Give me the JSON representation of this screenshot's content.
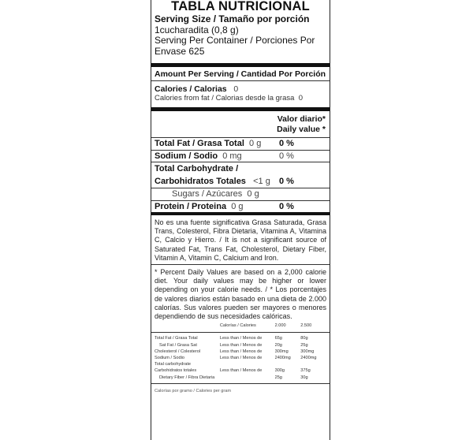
{
  "title": "TABLA NUTRICIONAL",
  "serving_size_label": "Serving Size / Tamaño por porción",
  "serving_size_value": "1cucharadita (0,8 g)",
  "servings_per_container": "Serving Per Container / Porciones Por Envase 625",
  "amount_per_serving": "Amount Per Serving / Cantidad Por Porción",
  "calories": {
    "label": "Calories / Calorias",
    "value": "0"
  },
  "calories_from_fat": {
    "label": "Calories from fat / Calorias desde la grasa",
    "value": "0"
  },
  "dv_header": [
    "Valor diario*",
    "Daily value *"
  ],
  "nutrients": [
    {
      "label": "Total Fat / Grasa Total",
      "amount": "0 g",
      "dv": "0 %"
    },
    {
      "label": "Sodium / Sodio",
      "amount": "0 mg",
      "dv": "0 %"
    },
    {
      "label": "Total Carbohydrate /",
      "label2": "Carbohidratos Totales",
      "amount": "<1 g",
      "dv": "0 %"
    },
    {
      "label": "Sugars / Azúcares",
      "amount": "0 g"
    },
    {
      "label": "Protein / Proteina",
      "amount": "0 g",
      "dv": "0 %"
    }
  ],
  "not_significant": "No es una fuente significativa Grasa Saturada, Grasa Trans, Colesterol, Fibra Dietaria, Vitamina A, Vitamina C, Calcio y Hierro. / It is not a significant source of Saturated Fat, Trans Fat, Cholesterol, Dietary Fiber, Vitamin A, Vitamin C, Calcium and Iron.",
  "percent_note": "* Percent Daily Values are based on a 2,000 calorie diet. Your daily values may be higher or lower depending on your calorie needs. / * Los porcentajes de valores diarios están basado en una dieta de 2.000 calorías. Sus valores pueden ser mayores o menores dependiendo de sus necesidades calóricas.",
  "calorie_header": {
    "label": "Calorías / Calories",
    "c1": "2.000",
    "c2": "2.500"
  },
  "reference_rows": [
    {
      "name": "Total Fat / Grasa Total",
      "limit": "Less than / Menos de",
      "c1": "65g",
      "c2": "80g"
    },
    {
      "name": "Sat Fat / Grasa Sat",
      "limit": "Less than / Menos de",
      "c1": "20g",
      "c2": "25g",
      "indent": true
    },
    {
      "name": "Cholesterol / Colesterol",
      "limit": "Less than / Menos de",
      "c1": "300mg",
      "c2": "300mg"
    },
    {
      "name": "Sodium / Sodio",
      "limit": "Less than / Menos de",
      "c1": "2400mg",
      "c2": "2400mg"
    },
    {
      "name": "Total carbohydrate",
      "limit": "",
      "c1": "",
      "c2": ""
    },
    {
      "name": "Carbohidratos totales",
      "limit": "Less than / Menos de",
      "c1": "300g",
      "c2": "375g"
    },
    {
      "name": "Dietary Fiber / Fibra Dietaria",
      "limit": "",
      "c1": "25g",
      "c2": "30g",
      "indent": true
    }
  ],
  "calories_per_gram": "Calorías por gramo / Calories per gram"
}
